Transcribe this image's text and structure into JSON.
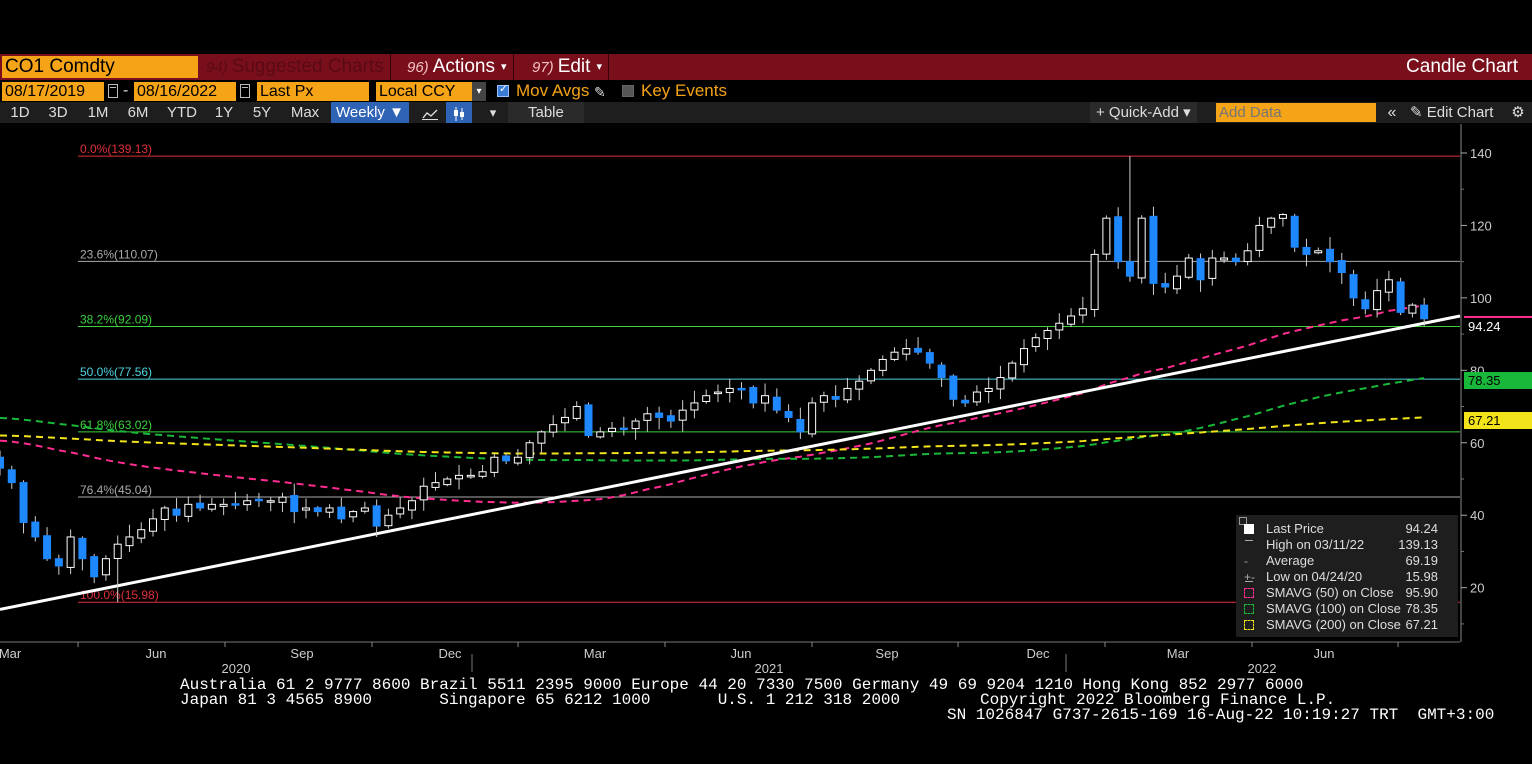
{
  "header": {
    "ticker": "CO1 Comdty",
    "menus": [
      {
        "num": "94)",
        "label": "Suggested Charts",
        "dim": true
      },
      {
        "num": "96)",
        "label": "Actions",
        "caret": "▾"
      },
      {
        "num": "97)",
        "label": "Edit",
        "caret": "▾"
      }
    ],
    "chart_type": "Candle Chart"
  },
  "params": {
    "start_date": "08/17/2019",
    "end_date": "08/16/2022",
    "separator": "-",
    "price_field": "Last Px",
    "currency": "Local CCY",
    "mov_avgs_label": "Mov Avgs",
    "key_events_label": "Key Events"
  },
  "toolbar": {
    "periods": [
      "1D",
      "3D",
      "1M",
      "6M",
      "YTD",
      "1Y",
      "5Y",
      "Max"
    ],
    "frequency": "Weekly",
    "table_label": "Table",
    "quick_add_label": "+ Quick-Add",
    "add_data_placeholder": "Add Data",
    "edit_chart_label": "Edit Chart"
  },
  "colors": {
    "up_candle": "#ffffff",
    "down_candle": "#1e88ff",
    "sma50": "#ff2d91",
    "sma100": "#19b83a",
    "sma200": "#f2e31b",
    "trendline": "#ffffff"
  },
  "chart_data": {
    "type": "candlestick",
    "frequency": "weekly",
    "ylim": [
      5,
      148
    ],
    "yticks": [
      20,
      40,
      60,
      80,
      100,
      120,
      140
    ],
    "x_month_labels": [
      "Mar",
      "Jun",
      "Sep",
      "Dec",
      "Mar",
      "Jun",
      "Sep",
      "Dec",
      "Mar",
      "Jun"
    ],
    "x_year_labels": [
      "2020",
      "2021",
      "2022"
    ],
    "fibonacci": [
      {
        "label": "0.0%(139.13)",
        "value": 139.13,
        "color": "#e0303a"
      },
      {
        "label": "23.6%(110.07)",
        "value": 110.07,
        "color": "#aaaaaa"
      },
      {
        "label": "38.2%(92.09)",
        "value": 92.09,
        "color": "#3bd13b"
      },
      {
        "label": "50.0%(77.56)",
        "value": 77.56,
        "color": "#4fd2e0"
      },
      {
        "label": "61.8%(63.02)",
        "value": 63.02,
        "color": "#3bd13b"
      },
      {
        "label": "76.4%(45.04)",
        "value": 45.04,
        "color": "#aaaaaa"
      },
      {
        "label": "100.0%(15.98)",
        "value": 15.98,
        "color": "#e0303a"
      }
    ],
    "last_price": 94.24,
    "high": 139.13,
    "average": 69.19,
    "low": 15.98,
    "sma50_last": 95.9,
    "sma100_last": 78.35,
    "sma200_last": 67.21,
    "closes": [
      53,
      49,
      38,
      34,
      28,
      26,
      34,
      28,
      23,
      28,
      32,
      34,
      36,
      39,
      42,
      40,
      43,
      42,
      43,
      43,
      43,
      44,
      44,
      44,
      45,
      41,
      42,
      41,
      42,
      39,
      41,
      42,
      37,
      40,
      42,
      44,
      48,
      49,
      50,
      51,
      51,
      52,
      56,
      55,
      56,
      60,
      63,
      65,
      67,
      70,
      62,
      63,
      64,
      64,
      66,
      68,
      67,
      66,
      69,
      71,
      73,
      74,
      75,
      75,
      71,
      73,
      69,
      67,
      63,
      71,
      73,
      72,
      75,
      77,
      80,
      83,
      85,
      86,
      85,
      82,
      78,
      72,
      71,
      74,
      75,
      78,
      82,
      86,
      89,
      91,
      93,
      95,
      97,
      112,
      122,
      110,
      106,
      122,
      104,
      103,
      106,
      111,
      105,
      111,
      111,
      110,
      113,
      120,
      122,
      123,
      114,
      112,
      113,
      110,
      107,
      100,
      97,
      102,
      105,
      96,
      98,
      94.24
    ],
    "trendline": {
      "from": [
        0,
        14
      ],
      "to": [
        121,
        93
      ]
    }
  },
  "legend": [
    {
      "label": "Last Price",
      "value": "94.24"
    },
    {
      "label": "High on 03/11/22",
      "value": "139.13"
    },
    {
      "label": "Average",
      "value": "69.19"
    },
    {
      "label": "Low on 04/24/20",
      "value": "15.98"
    },
    {
      "label": "SMAVG (50)  on Close",
      "value": "95.90"
    },
    {
      "label": "SMAVG (100)  on Close",
      "value": "78.35"
    },
    {
      "label": "SMAVG (200)  on Close",
      "value": "67.21"
    }
  ],
  "price_tags": {
    "last": "94.24",
    "sma100": "78.35",
    "sma200": "67.21"
  },
  "footer": {
    "line1": "Australia 61 2 9777 8600 Brazil 5511 2395 9000 Europe 44 20 7330 7500 Germany 49 69 9204 1210 Hong Kong 852 2977 6000",
    "line2_left": "Japan 81 3 4565 8900       Singapore 65 6212 1000       U.S. 1 212 318 2000",
    "line2_right": "Copyright 2022 Bloomberg Finance L.P.",
    "line3": "SN 1026847 G737-2615-169 16-Aug-22 10:19:27 TRT  GMT+3:00"
  }
}
